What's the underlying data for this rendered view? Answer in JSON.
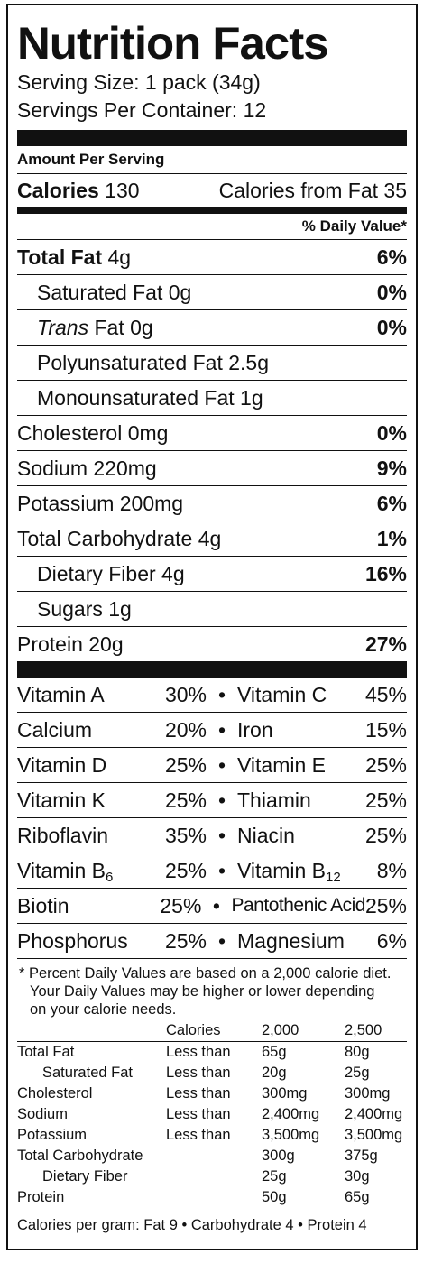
{
  "title": "Nutrition Facts",
  "serving_size": "Serving Size: 1 pack (34g)",
  "servings_per_container": "Servings Per Container: 12",
  "amount_per_serving": "Amount Per Serving",
  "calories_label": "Calories",
  "calories_value": "130",
  "calories_from_fat": "Calories from Fat 35",
  "daily_value_header": "% Daily Value*",
  "nutrients": {
    "total_fat": {
      "label": "Total Fat",
      "amount": "4g",
      "pct": "6%"
    },
    "saturated_fat": {
      "label": "Saturated Fat 0g",
      "pct": "0%"
    },
    "trans_fat": {
      "label_italic": "Trans",
      "label_rest": "Fat 0g",
      "pct": "0%"
    },
    "polyunsaturated_fat": {
      "label": "Polyunsaturated Fat 2.5g"
    },
    "monounsaturated_fat": {
      "label": "Monounsaturated Fat 1g"
    },
    "cholesterol": {
      "label": "Cholesterol 0mg",
      "pct": "0%"
    },
    "sodium": {
      "label": "Sodium 220mg",
      "pct": "9%"
    },
    "potassium": {
      "label": "Potassium 200mg",
      "pct": "6%"
    },
    "total_carbohydrate": {
      "label": "Total Carbohydrate 4g",
      "pct": "1%"
    },
    "dietary_fiber": {
      "label": "Dietary Fiber 4g",
      "pct": "16%"
    },
    "sugars": {
      "label": "Sugars 1g"
    },
    "protein": {
      "label": "Protein 20g",
      "pct": "27%"
    }
  },
  "vitamins": [
    {
      "name1": "Vitamin A",
      "pct1": "30%",
      "name2": "Vitamin C",
      "pct2": "45%"
    },
    {
      "name1": "Calcium",
      "pct1": "20%",
      "name2": "Iron",
      "pct2": "15%"
    },
    {
      "name1": "Vitamin D",
      "pct1": "25%",
      "name2": "Vitamin E",
      "pct2": "25%"
    },
    {
      "name1": "Vitamin K",
      "pct1": "25%",
      "name2": "Thiamin",
      "pct2": "25%"
    },
    {
      "name1": "Riboflavin",
      "pct1": "35%",
      "name2": "Niacin",
      "pct2": "25%"
    },
    {
      "name1": "Vitamin B",
      "sub1": "6",
      "pct1": "25%",
      "name2": "Vitamin B",
      "sub2": "12",
      "pct2": "8%"
    },
    {
      "name1": "Biotin",
      "pct1": "25%",
      "name2": "Pantothenic Acid",
      "pct2": "25%"
    },
    {
      "name1": "Phosphorus",
      "pct1": "25%",
      "name2": "Magnesium",
      "pct2": "6%"
    }
  ],
  "bullet": "•",
  "footnote": {
    "line1": "* Percent Daily Values are based on a 2,000 calorie diet.",
    "line2": "Your Daily Values may be higher or lower depending",
    "line3": "on your calorie needs."
  },
  "dv_table": {
    "header": [
      "",
      "Calories",
      "2,000",
      "2,500"
    ],
    "rows": [
      [
        "Total Fat",
        "Less than",
        "65g",
        "80g"
      ],
      [
        "Saturated Fat",
        "Less than",
        "20g",
        "25g"
      ],
      [
        "Cholesterol",
        "Less than",
        "300mg",
        "300mg"
      ],
      [
        "Sodium",
        "Less than",
        "2,400mg",
        "2,400mg"
      ],
      [
        "Potassium",
        "Less than",
        "3,500mg",
        "3,500mg"
      ],
      [
        "Total Carbohydrate",
        "",
        "300g",
        "375g"
      ],
      [
        "Dietary Fiber",
        "",
        "25g",
        "30g"
      ],
      [
        "Protein",
        "",
        "50g",
        "65g"
      ]
    ]
  },
  "calories_per_gram": "Calories per gram:  Fat 9  •  Carbohydrate 4  •  Protein 4"
}
